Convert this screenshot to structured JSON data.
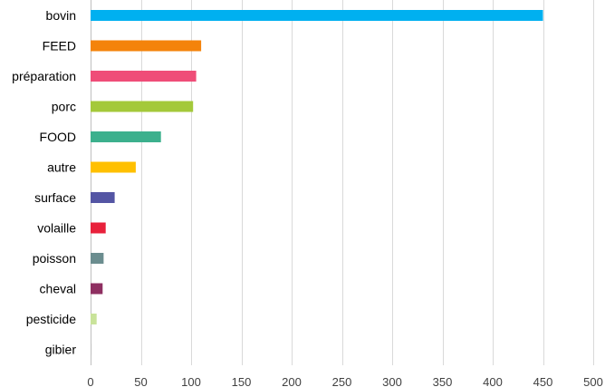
{
  "chart_data": {
    "type": "bar",
    "orientation": "horizontal",
    "title": "",
    "xlabel": "",
    "ylabel": "",
    "xlim": [
      0,
      500
    ],
    "x_ticks": [
      0,
      50,
      100,
      150,
      200,
      250,
      300,
      350,
      400,
      450,
      500
    ],
    "grid": true,
    "legend": "none",
    "categories": [
      "bovin",
      "FEED",
      "préparation",
      "porc",
      "FOOD",
      "autre",
      "surface",
      "volaille",
      "poisson",
      "cheval",
      "pesticide",
      "gibier"
    ],
    "values": [
      450,
      110,
      105,
      102,
      70,
      45,
      24,
      15,
      13,
      12,
      6,
      1
    ],
    "colors": [
      "#00b0f0",
      "#f4830b",
      "#ef4d78",
      "#a4c93a",
      "#3cb08d",
      "#ffc000",
      "#5455a4",
      "#e8213b",
      "#6b8d8f",
      "#8e2f61",
      "#c9e39a",
      "#bfbfbf"
    ]
  }
}
